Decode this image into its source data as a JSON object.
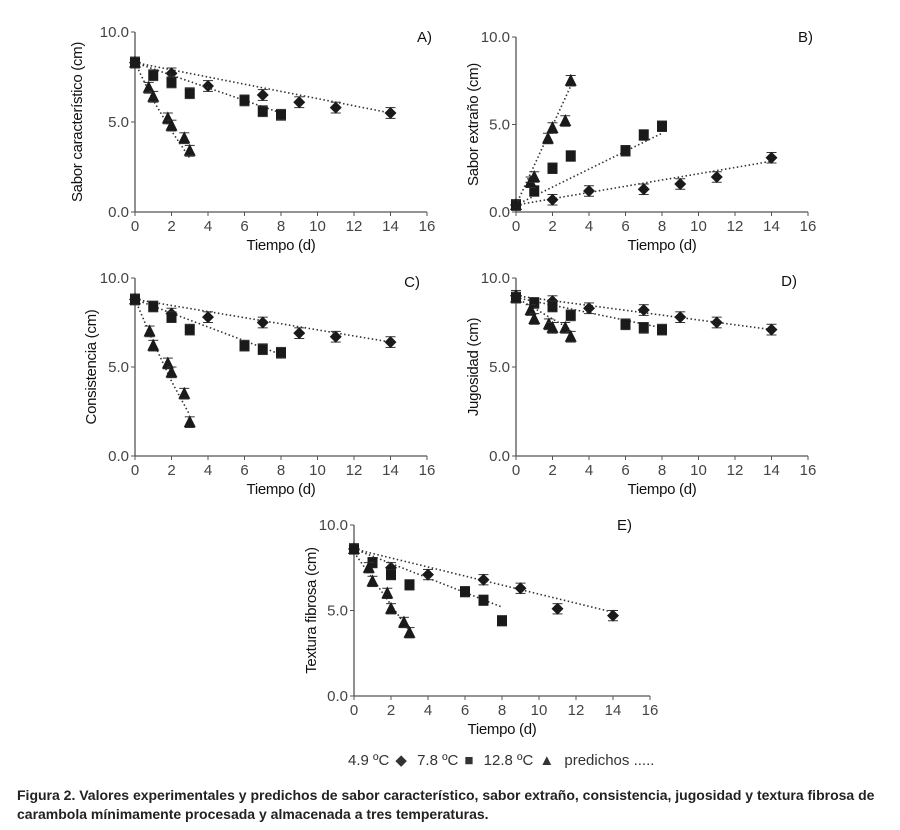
{
  "chart_data": [
    {
      "type": "scatter",
      "panel": "A)",
      "xlabel": "Tiempo (d)",
      "ylabel": "Sabor característico (cm)",
      "xlim": [
        0,
        16
      ],
      "ylim": [
        0,
        10
      ],
      "xticks": [
        "0",
        "2",
        "4",
        "6",
        "8",
        "10",
        "12",
        "14",
        "16"
      ],
      "yticks": [
        "0.0",
        "5.0",
        "10.0"
      ],
      "series": [
        {
          "marker": "diamond",
          "x": [
            0,
            2,
            4,
            7,
            9,
            11,
            14
          ],
          "y": [
            8.3,
            7.7,
            7.0,
            6.5,
            6.1,
            5.8,
            5.5
          ],
          "fit_x": [
            0,
            14
          ],
          "fit_y": [
            8.3,
            5.5
          ]
        },
        {
          "marker": "square",
          "x": [
            0,
            1,
            2,
            3,
            6,
            7,
            8
          ],
          "y": [
            8.3,
            7.6,
            7.2,
            6.6,
            6.2,
            5.6,
            5.4
          ],
          "fit_x": [
            0,
            8
          ],
          "fit_y": [
            8.3,
            5.5
          ]
        },
        {
          "marker": "triangle",
          "x": [
            0,
            0.75,
            1,
            1.8,
            2,
            2.7,
            3
          ],
          "y": [
            8.3,
            6.9,
            6.4,
            5.2,
            4.8,
            4.1,
            3.4
          ],
          "fit_x": [
            0,
            1,
            2,
            3
          ],
          "fit_y": [
            8.3,
            6.2,
            4.5,
            3.0
          ]
        }
      ]
    },
    {
      "type": "scatter",
      "panel": "B)",
      "xlabel": "Tiempo (d)",
      "ylabel": "Sabor extraño (cm)",
      "xlim": [
        0,
        16
      ],
      "ylim": [
        0,
        10
      ],
      "xticks": [
        "0",
        "2",
        "4",
        "6",
        "8",
        "10",
        "12",
        "14",
        "16"
      ],
      "yticks": [
        "0.0",
        "5.0",
        "10.0"
      ],
      "series": [
        {
          "marker": "diamond",
          "x": [
            0,
            2,
            4,
            7,
            9,
            11,
            14
          ],
          "y": [
            0.4,
            0.7,
            1.2,
            1.3,
            1.6,
            2.0,
            3.1
          ],
          "fit_x": [
            0,
            14
          ],
          "fit_y": [
            0.4,
            2.9
          ]
        },
        {
          "marker": "square",
          "x": [
            0,
            1,
            2,
            3,
            6,
            7,
            8
          ],
          "y": [
            0.4,
            1.2,
            2.5,
            3.2,
            3.5,
            4.4,
            4.9
          ],
          "fit_x": [
            0,
            8
          ],
          "fit_y": [
            0.4,
            4.5
          ]
        },
        {
          "marker": "triangle",
          "x": [
            0,
            0.8,
            1,
            1.75,
            2,
            2.7,
            3
          ],
          "y": [
            0.4,
            1.7,
            2.0,
            4.2,
            4.8,
            5.2,
            7.5
          ],
          "fit_x": [
            0,
            3
          ],
          "fit_y": [
            0.4,
            7.2
          ]
        }
      ]
    },
    {
      "type": "scatter",
      "panel": "C)",
      "xlabel": "Tiempo (d)",
      "ylabel": "Consistencia (cm)",
      "xlim": [
        0,
        16
      ],
      "ylim": [
        0,
        10
      ],
      "xticks": [
        "0",
        "2",
        "4",
        "6",
        "8",
        "10",
        "12",
        "14",
        "16"
      ],
      "yticks": [
        "0.0",
        "5.0",
        "10.0"
      ],
      "series": [
        {
          "marker": "diamond",
          "x": [
            0,
            2,
            4,
            7,
            9,
            11,
            14
          ],
          "y": [
            8.8,
            8.0,
            7.8,
            7.5,
            6.9,
            6.7,
            6.4
          ],
          "fit_x": [
            0,
            14
          ],
          "fit_y": [
            8.8,
            6.4
          ]
        },
        {
          "marker": "square",
          "x": [
            0,
            1,
            2,
            3,
            6,
            7,
            8
          ],
          "y": [
            8.8,
            8.4,
            7.8,
            7.1,
            6.2,
            6.0,
            5.8
          ],
          "fit_x": [
            0,
            8
          ],
          "fit_y": [
            8.8,
            5.7
          ]
        },
        {
          "marker": "triangle",
          "x": [
            0,
            0.8,
            1,
            1.8,
            2,
            2.7,
            3
          ],
          "y": [
            8.8,
            7.0,
            6.2,
            5.2,
            4.7,
            3.5,
            1.9
          ],
          "fit_x": [
            0,
            1,
            2,
            3
          ],
          "fit_y": [
            8.8,
            6.4,
            4.2,
            2.3
          ]
        }
      ]
    },
    {
      "type": "scatter",
      "panel": "D)",
      "xlabel": "Tiempo (d)",
      "ylabel": "Jugosidad (cm)",
      "xlim": [
        0,
        16
      ],
      "ylim": [
        0,
        10
      ],
      "xticks": [
        "0",
        "2",
        "4",
        "6",
        "8",
        "10",
        "12",
        "14",
        "16"
      ],
      "yticks": [
        "0.0",
        "5.0",
        "10.0"
      ],
      "series": [
        {
          "marker": "diamond",
          "x": [
            0,
            2,
            4,
            7,
            9,
            11,
            14
          ],
          "y": [
            9.0,
            8.7,
            8.3,
            8.2,
            7.8,
            7.5,
            7.1
          ],
          "fit_x": [
            0,
            14
          ],
          "fit_y": [
            9.0,
            7.1
          ]
        },
        {
          "marker": "square",
          "x": [
            0,
            1,
            2,
            3,
            6,
            7,
            8
          ],
          "y": [
            8.9,
            8.6,
            8.4,
            7.9,
            7.4,
            7.2,
            7.1
          ],
          "fit_x": [
            0,
            8
          ],
          "fit_y": [
            8.9,
            7.2
          ]
        },
        {
          "marker": "triangle",
          "x": [
            0,
            0.8,
            1,
            1.8,
            2,
            2.7,
            3
          ],
          "y": [
            8.9,
            8.2,
            7.7,
            7.4,
            7.2,
            7.2,
            6.7
          ],
          "fit_x": [
            0,
            3
          ],
          "fit_y": [
            8.9,
            7.1
          ]
        }
      ]
    },
    {
      "type": "scatter",
      "panel": "E)",
      "xlabel": "Tiempo (d)",
      "ylabel": "Textura fibrosa (cm)",
      "xlim": [
        0,
        16
      ],
      "ylim": [
        0,
        10
      ],
      "xticks": [
        "0",
        "2",
        "4",
        "6",
        "8",
        "10",
        "12",
        "14",
        "16"
      ],
      "yticks": [
        "0.0",
        "5.0",
        "10.0"
      ],
      "series": [
        {
          "marker": "diamond",
          "x": [
            0,
            2,
            4,
            7,
            9,
            11,
            14
          ],
          "y": [
            8.6,
            7.5,
            7.1,
            6.8,
            6.3,
            5.1,
            4.7
          ],
          "fit_x": [
            0,
            14
          ],
          "fit_y": [
            8.6,
            4.9
          ]
        },
        {
          "marker": "square",
          "x": [
            0,
            1,
            2,
            3,
            6,
            7,
            8
          ],
          "y": [
            8.6,
            7.8,
            7.1,
            6.5,
            6.1,
            5.6,
            4.4
          ],
          "fit_x": [
            0,
            8
          ],
          "fit_y": [
            8.6,
            5.2
          ]
        },
        {
          "marker": "triangle",
          "x": [
            0,
            0.8,
            1,
            1.8,
            2,
            2.7,
            3
          ],
          "y": [
            8.6,
            7.5,
            6.7,
            6.0,
            5.1,
            4.3,
            3.7
          ],
          "fit_x": [
            0,
            3
          ],
          "fit_y": [
            8.4,
            3.8
          ]
        }
      ]
    }
  ],
  "legend": {
    "items": [
      {
        "label": "4.9 ºC",
        "glyph": "◆"
      },
      {
        "label": "7.8 ºC",
        "glyph": "■"
      },
      {
        "label": "12.8 ºC",
        "glyph": "▲"
      },
      {
        "label": "predichos .....",
        "glyph": ""
      }
    ]
  },
  "caption": "Figura 2. Valores experimentales y predichos de sabor característico, sabor extraño, consistencia, jugosidad y textura fibrosa de carambola mínimamente procesada y almacenada a tres temperaturas.",
  "colors": {
    "marker": "#1a1a1a",
    "axis": "#555555"
  }
}
